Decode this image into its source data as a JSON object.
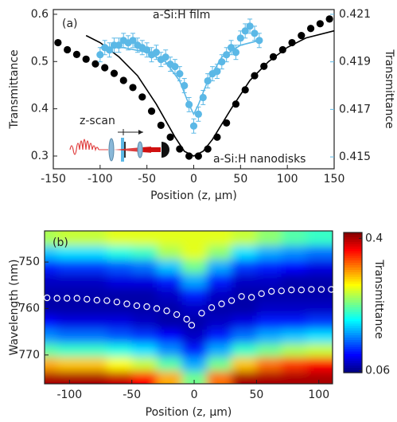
{
  "chart_data": [
    {
      "type": "scatter",
      "panel_label": "(a)",
      "xlabel": "Position (z, μm)",
      "ylabel": "Transmittance",
      "y2label": "Transmittance",
      "inset_label": "z-scan",
      "xlim": [
        -150,
        150
      ],
      "xticks": [
        -150,
        -100,
        -50,
        0,
        50,
        100,
        150
      ],
      "ylim": [
        0.273,
        0.61
      ],
      "yticks": [
        0.3,
        0.4,
        0.5,
        0.6
      ],
      "y2lim": [
        0.4145,
        0.4212
      ],
      "y2ticks": [
        0.415,
        0.417,
        0.419,
        0.421
      ],
      "y2color": "#5bb8e6",
      "series": [
        {
          "name": "a-Si:H nanodisks",
          "color": "#000000",
          "x": [
            -145,
            -135,
            -125,
            -115,
            -105,
            -95,
            -85,
            -75,
            -65,
            -55,
            -45,
            -35,
            -25,
            -15,
            -5,
            5,
            15,
            25,
            35,
            45,
            55,
            65,
            75,
            85,
            95,
            105,
            115,
            125,
            135,
            145
          ],
          "values": [
            0.54,
            0.525,
            0.515,
            0.505,
            0.495,
            0.487,
            0.475,
            0.46,
            0.445,
            0.425,
            0.395,
            0.365,
            0.34,
            0.315,
            0.3,
            0.3,
            0.315,
            0.34,
            0.37,
            0.41,
            0.44,
            0.47,
            0.49,
            0.51,
            0.525,
            0.54,
            0.555,
            0.57,
            0.58,
            0.59
          ]
        },
        {
          "name": "a-Si:H film",
          "color": "#5bb8e6",
          "axis": "y2",
          "x": [
            -100,
            -95,
            -90,
            -85,
            -80,
            -75,
            -70,
            -65,
            -60,
            -55,
            -50,
            -45,
            -40,
            -35,
            -30,
            -25,
            -20,
            -15,
            -10,
            -5,
            0,
            5,
            10,
            15,
            20,
            25,
            30,
            35,
            40,
            45,
            50,
            55,
            60,
            65,
            70
          ],
          "values": [
            0.4193,
            0.4196,
            0.4195,
            0.4197,
            0.4197,
            0.4199,
            0.4198,
            0.4199,
            0.4197,
            0.4196,
            0.4195,
            0.4193,
            0.4194,
            0.4191,
            0.4192,
            0.4189,
            0.4188,
            0.4185,
            0.418,
            0.4172,
            0.4163,
            0.4168,
            0.4175,
            0.4182,
            0.4185,
            0.4186,
            0.419,
            0.4193,
            0.4196,
            0.4194,
            0.42,
            0.4203,
            0.4205,
            0.4202,
            0.4199
          ],
          "errors": [
            0.0003,
            0.0003,
            0.0003,
            0.0003,
            0.0003,
            0.0003,
            0.0003,
            0.0003,
            0.0003,
            0.0003,
            0.0003,
            0.0003,
            0.0003,
            0.0003,
            0.0003,
            0.0003,
            0.0003,
            0.0003,
            0.0003,
            0.0003,
            0.0003,
            0.0003,
            0.0003,
            0.0003,
            0.0003,
            0.0003,
            0.0003,
            0.0003,
            0.0003,
            0.0003,
            0.0003,
            0.0003,
            0.0003,
            0.0003,
            0.0003
          ]
        }
      ],
      "fits": [
        {
          "color": "#000000",
          "x": [
            -115,
            -100,
            -80,
            -60,
            -40,
            -20,
            -10,
            0,
            10,
            20,
            40,
            60,
            80,
            100,
            120,
            150
          ],
          "values": [
            0.555,
            0.54,
            0.51,
            0.47,
            0.41,
            0.34,
            0.31,
            0.3,
            0.31,
            0.335,
            0.4,
            0.46,
            0.5,
            0.53,
            0.55,
            0.565
          ]
        },
        {
          "color": "#5bb8e6",
          "axis": "y2",
          "x": [
            -100,
            -75,
            -50,
            -30,
            -15,
            -5,
            0,
            5,
            15,
            30,
            50,
            70
          ],
          "values": [
            0.4196,
            0.4196,
            0.4194,
            0.419,
            0.4182,
            0.4172,
            0.4168,
            0.4172,
            0.4182,
            0.4192,
            0.4197,
            0.4199
          ]
        }
      ]
    },
    {
      "type": "heatmap",
      "panel_label": "(b)",
      "xlabel": "Position (z, μm)",
      "ylabel": "Wavelength (nm)",
      "colorbar_label": "Transmittance",
      "xlim": [
        -120,
        111
      ],
      "xticks": [
        -100,
        -50,
        0,
        50,
        100
      ],
      "ylim": [
        743.3,
        776.2
      ],
      "y_inverted": true,
      "yticks": [
        750,
        760,
        770
      ],
      "colormap": "jet",
      "clim": [
        0.055,
        0.415
      ],
      "cticks": [
        0.4,
        0.06
      ],
      "x": [
        -120,
        -100,
        -80,
        -60,
        -40,
        -20,
        0,
        20,
        40,
        60,
        80,
        100,
        120
      ],
      "y": [
        745,
        748,
        751,
        754,
        757,
        760,
        763,
        766,
        769,
        772,
        775
      ],
      "z": [
        [
          0.25,
          0.26,
          0.26,
          0.27,
          0.27,
          0.27,
          0.27,
          0.27,
          0.26,
          0.24,
          0.22,
          0.21,
          0.21
        ],
        [
          0.17,
          0.18,
          0.18,
          0.2,
          0.21,
          0.25,
          0.27,
          0.24,
          0.18,
          0.16,
          0.15,
          0.14,
          0.14
        ],
        [
          0.11,
          0.12,
          0.12,
          0.13,
          0.14,
          0.17,
          0.23,
          0.16,
          0.12,
          0.11,
          0.1,
          0.09,
          0.09
        ],
        [
          0.08,
          0.08,
          0.08,
          0.09,
          0.09,
          0.11,
          0.16,
          0.11,
          0.08,
          0.08,
          0.07,
          0.07,
          0.07
        ],
        [
          0.07,
          0.07,
          0.07,
          0.07,
          0.07,
          0.08,
          0.11,
          0.08,
          0.07,
          0.07,
          0.07,
          0.07,
          0.07
        ],
        [
          0.07,
          0.07,
          0.07,
          0.07,
          0.07,
          0.07,
          0.08,
          0.07,
          0.07,
          0.08,
          0.08,
          0.08,
          0.08
        ],
        [
          0.1,
          0.09,
          0.09,
          0.09,
          0.08,
          0.07,
          0.07,
          0.08,
          0.09,
          0.11,
          0.11,
          0.12,
          0.12
        ],
        [
          0.15,
          0.14,
          0.14,
          0.13,
          0.12,
          0.1,
          0.08,
          0.11,
          0.14,
          0.16,
          0.17,
          0.18,
          0.18
        ],
        [
          0.22,
          0.21,
          0.21,
          0.2,
          0.18,
          0.15,
          0.11,
          0.16,
          0.21,
          0.23,
          0.25,
          0.26,
          0.26
        ],
        [
          0.31,
          0.3,
          0.3,
          0.28,
          0.26,
          0.22,
          0.16,
          0.23,
          0.3,
          0.33,
          0.35,
          0.37,
          0.37
        ],
        [
          0.4,
          0.4,
          0.4,
          0.39,
          0.37,
          0.31,
          0.23,
          0.33,
          0.4,
          0.4,
          0.4,
          0.4,
          0.4
        ]
      ],
      "markers": {
        "color": "#ffffff",
        "x": [
          -118,
          -110,
          -102,
          -94,
          -86,
          -78,
          -70,
          -62,
          -54,
          -46,
          -38,
          -30,
          -22,
          -14,
          -6,
          -2,
          6,
          14,
          22,
          30,
          38,
          46,
          54,
          62,
          70,
          78,
          86,
          94,
          102,
          110
        ],
        "values": [
          757.7,
          757.8,
          757.8,
          757.8,
          758,
          758.2,
          758.3,
          758.6,
          759,
          759.4,
          759.6,
          760,
          760.5,
          761.3,
          762.3,
          763.6,
          761,
          759.8,
          759,
          758.3,
          757.4,
          757.6,
          756.8,
          756.3,
          756.2,
          756,
          756,
          755.9,
          755.9,
          755.9
        ]
      }
    }
  ]
}
